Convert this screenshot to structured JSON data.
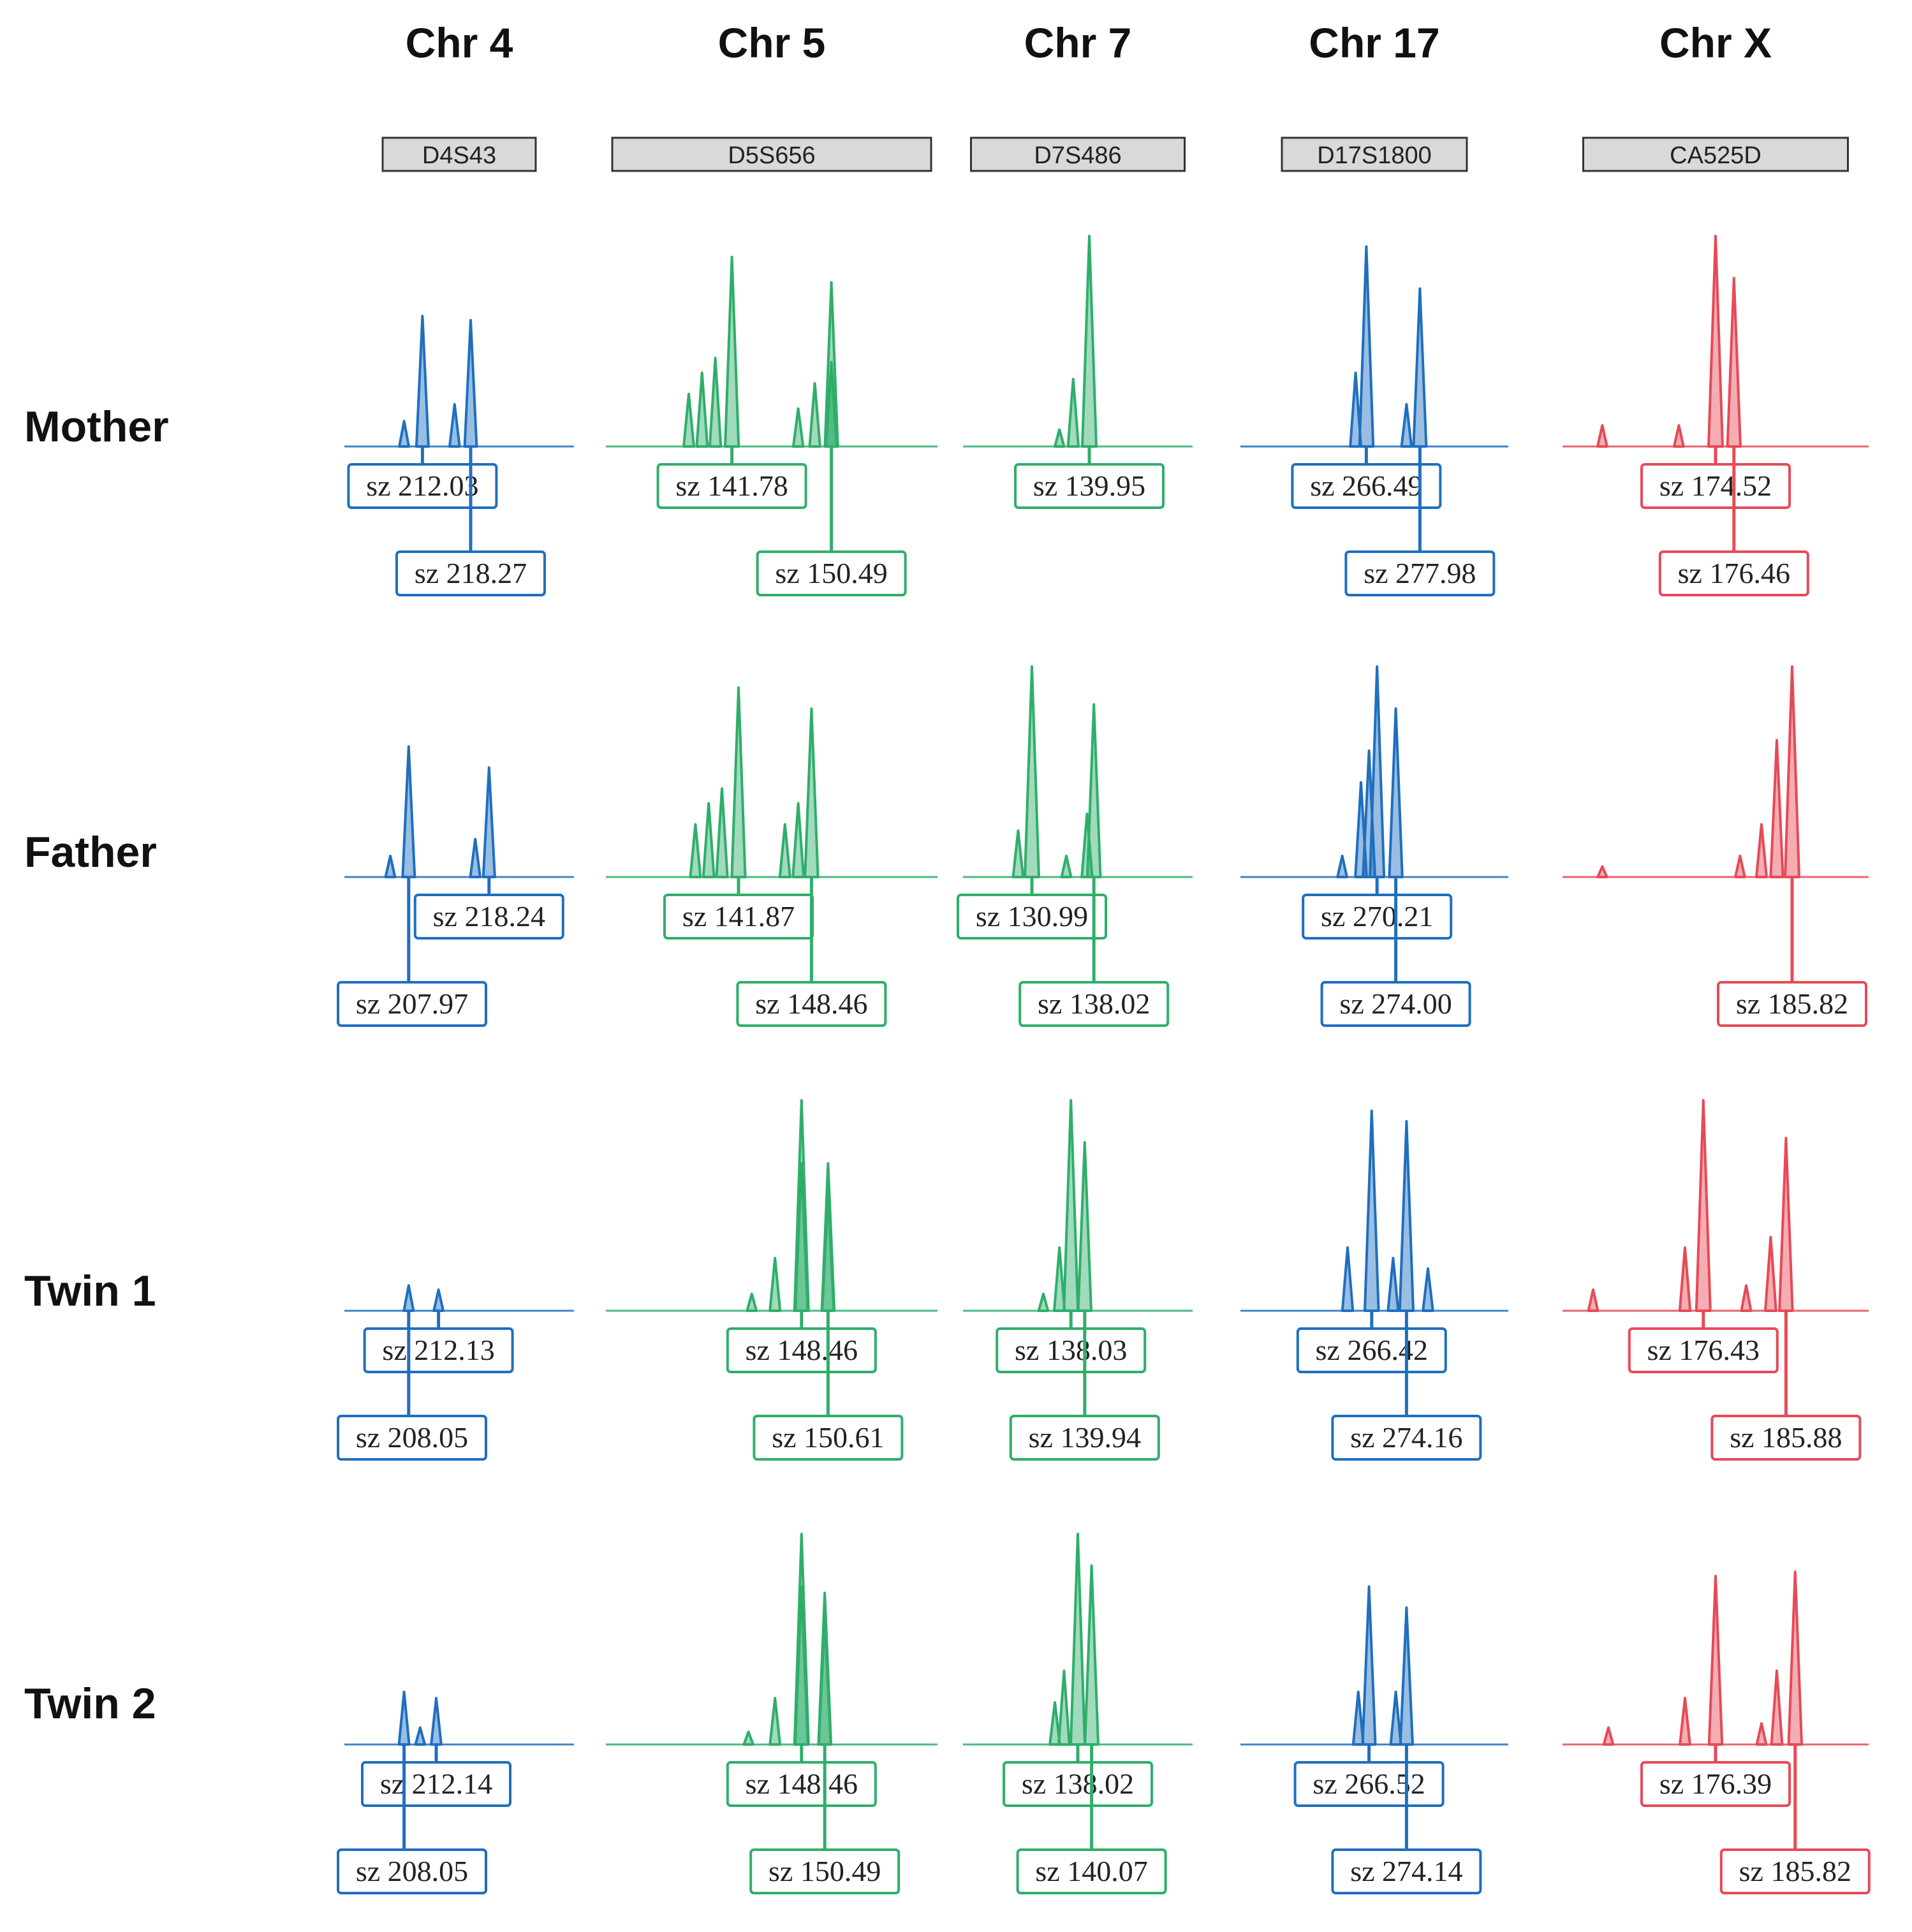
{
  "colors": {
    "blue": "#1f6fbf",
    "green": "#2fae6a",
    "red": "#e64a57",
    "baseline": "#555555",
    "markerFill": "#d9d9d9"
  },
  "columns": [
    {
      "title": "Chr 4",
      "marker": "D4S43",
      "color": "blue"
    },
    {
      "title": "Chr 5",
      "marker": "D5S656",
      "color": "green"
    },
    {
      "title": "Chr 7",
      "marker": "D7S486",
      "color": "green"
    },
    {
      "title": "Chr 17",
      "marker": "D17S1800",
      "color": "blue"
    },
    {
      "title": "Chr X",
      "marker": "CA525D",
      "color": "red"
    }
  ],
  "rows": [
    {
      "name": "Mother",
      "cells": [
        {
          "peaks": [
            {
              "pos": 0.26,
              "h": 0.12
            },
            {
              "pos": 0.34,
              "h": 0.62
            },
            {
              "pos": 0.48,
              "h": 0.2
            },
            {
              "pos": 0.55,
              "h": 0.6
            }
          ],
          "labels": [
            {
              "text": "sz 212.03",
              "level": 1,
              "anchor": 0.34
            },
            {
              "text": "sz 218.27",
              "level": 2,
              "anchor": 0.55
            }
          ]
        },
        {
          "peaks": [
            {
              "pos": 0.25,
              "h": 0.25
            },
            {
              "pos": 0.29,
              "h": 0.35
            },
            {
              "pos": 0.33,
              "h": 0.42
            },
            {
              "pos": 0.38,
              "h": 0.9
            },
            {
              "pos": 0.58,
              "h": 0.18
            },
            {
              "pos": 0.63,
              "h": 0.3
            },
            {
              "pos": 0.68,
              "h": 0.38
            },
            {
              "pos": 0.68,
              "h": 0.4
            },
            {
              "pos": 0.68,
              "h": 0.78
            }
          ],
          "labels": [
            {
              "text": "sz 141.78",
              "level": 1,
              "anchor": 0.38
            },
            {
              "text": "sz 150.49",
              "level": 2,
              "anchor": 0.68
            }
          ]
        },
        {
          "peaks": [
            {
              "pos": 0.42,
              "h": 0.08
            },
            {
              "pos": 0.48,
              "h": 0.32
            },
            {
              "pos": 0.55,
              "h": 1.0
            }
          ],
          "labels": [
            {
              "text": "sz 139.95",
              "level": 1,
              "anchor": 0.55
            }
          ]
        },
        {
          "peaks": [
            {
              "pos": 0.43,
              "h": 0.35
            },
            {
              "pos": 0.47,
              "h": 0.95
            },
            {
              "pos": 0.62,
              "h": 0.2
            },
            {
              "pos": 0.67,
              "h": 0.75
            }
          ],
          "labels": [
            {
              "text": "sz 266.49",
              "level": 1,
              "anchor": 0.47
            },
            {
              "text": "sz 277.98",
              "level": 2,
              "anchor": 0.67
            }
          ]
        },
        {
          "peaks": [
            {
              "pos": 0.13,
              "h": 0.1
            },
            {
              "pos": 0.38,
              "h": 0.1
            },
            {
              "pos": 0.5,
              "h": 1.0
            },
            {
              "pos": 0.56,
              "h": 0.8
            }
          ],
          "labels": [
            {
              "text": "sz 174.52",
              "level": 1,
              "anchor": 0.5
            },
            {
              "text": "sz 176.46",
              "level": 2,
              "anchor": 0.56
            }
          ]
        }
      ]
    },
    {
      "name": "Father",
      "cells": [
        {
          "peaks": [
            {
              "pos": 0.2,
              "h": 0.1
            },
            {
              "pos": 0.28,
              "h": 0.62
            },
            {
              "pos": 0.57,
              "h": 0.18
            },
            {
              "pos": 0.63,
              "h": 0.52
            }
          ],
          "labels": [
            {
              "text": "sz 218.24",
              "level": 1,
              "anchor": 0.63
            },
            {
              "text": "sz 207.97",
              "level": 2,
              "anchor": 0.28
            }
          ]
        },
        {
          "peaks": [
            {
              "pos": 0.27,
              "h": 0.25
            },
            {
              "pos": 0.31,
              "h": 0.35
            },
            {
              "pos": 0.35,
              "h": 0.42
            },
            {
              "pos": 0.4,
              "h": 0.9
            },
            {
              "pos": 0.54,
              "h": 0.25
            },
            {
              "pos": 0.58,
              "h": 0.35
            },
            {
              "pos": 0.62,
              "h": 0.8
            }
          ],
          "labels": [
            {
              "text": "sz 141.87",
              "level": 1,
              "anchor": 0.4
            },
            {
              "text": "sz 148.46",
              "level": 2,
              "anchor": 0.62
            }
          ]
        },
        {
          "peaks": [
            {
              "pos": 0.24,
              "h": 0.22
            },
            {
              "pos": 0.3,
              "h": 1.0
            },
            {
              "pos": 0.45,
              "h": 0.1
            },
            {
              "pos": 0.54,
              "h": 0.3
            },
            {
              "pos": 0.57,
              "h": 0.82
            }
          ],
          "labels": [
            {
              "text": "sz 130.99",
              "level": 1,
              "anchor": 0.3
            },
            {
              "text": "sz 138.02",
              "level": 2,
              "anchor": 0.57
            }
          ]
        },
        {
          "peaks": [
            {
              "pos": 0.38,
              "h": 0.1
            },
            {
              "pos": 0.45,
              "h": 0.45
            },
            {
              "pos": 0.48,
              "h": 0.6
            },
            {
              "pos": 0.51,
              "h": 1.0
            },
            {
              "pos": 0.58,
              "h": 0.8
            }
          ],
          "labels": [
            {
              "text": "sz 270.21",
              "level": 1,
              "anchor": 0.51
            },
            {
              "text": "sz 274.00",
              "level": 2,
              "anchor": 0.58
            }
          ]
        },
        {
          "peaks": [
            {
              "pos": 0.13,
              "h": 0.05
            },
            {
              "pos": 0.58,
              "h": 0.1
            },
            {
              "pos": 0.65,
              "h": 0.25
            },
            {
              "pos": 0.7,
              "h": 0.65
            },
            {
              "pos": 0.75,
              "h": 1.0
            }
          ],
          "labels": [
            {
              "text": "sz 185.82",
              "level": 2,
              "anchor": 0.75
            }
          ]
        }
      ]
    },
    {
      "name": "Twin 1",
      "cells": [
        {
          "peaks": [
            {
              "pos": 0.28,
              "h": 0.12
            },
            {
              "pos": 0.41,
              "h": 0.1
            }
          ],
          "labels": [
            {
              "text": "sz 212.13",
              "level": 1,
              "anchor": 0.41
            },
            {
              "text": "sz 208.05",
              "level": 2,
              "anchor": 0.28
            }
          ]
        },
        {
          "peaks": [
            {
              "pos": 0.44,
              "h": 0.08
            },
            {
              "pos": 0.51,
              "h": 0.25
            },
            {
              "pos": 0.59,
              "h": 0.7
            },
            {
              "pos": 0.59,
              "h": 1.0
            },
            {
              "pos": 0.67,
              "h": 0.55
            },
            {
              "pos": 0.67,
              "h": 0.7
            }
          ],
          "labels": [
            {
              "text": "sz 148.46",
              "level": 1,
              "anchor": 0.59
            },
            {
              "text": "sz 150.61",
              "level": 2,
              "anchor": 0.67
            }
          ]
        },
        {
          "peaks": [
            {
              "pos": 0.35,
              "h": 0.08
            },
            {
              "pos": 0.42,
              "h": 0.3
            },
            {
              "pos": 0.47,
              "h": 1.0
            },
            {
              "pos": 0.53,
              "h": 0.8
            }
          ],
          "labels": [
            {
              "text": "sz 138.03",
              "level": 1,
              "anchor": 0.47
            },
            {
              "text": "sz 139.94",
              "level": 2,
              "anchor": 0.53
            }
          ]
        },
        {
          "peaks": [
            {
              "pos": 0.4,
              "h": 0.3
            },
            {
              "pos": 0.49,
              "h": 0.95
            },
            {
              "pos": 0.57,
              "h": 0.25
            },
            {
              "pos": 0.62,
              "h": 0.9
            },
            {
              "pos": 0.7,
              "h": 0.2
            }
          ],
          "labels": [
            {
              "text": "sz 266.42",
              "level": 1,
              "anchor": 0.49
            },
            {
              "text": "sz 274.16",
              "level": 2,
              "anchor": 0.62
            }
          ]
        },
        {
          "peaks": [
            {
              "pos": 0.1,
              "h": 0.1
            },
            {
              "pos": 0.4,
              "h": 0.3
            },
            {
              "pos": 0.46,
              "h": 1.0
            },
            {
              "pos": 0.6,
              "h": 0.12
            },
            {
              "pos": 0.68,
              "h": 0.35
            },
            {
              "pos": 0.73,
              "h": 0.82
            }
          ],
          "labels": [
            {
              "text": "sz 176.43",
              "level": 1,
              "anchor": 0.46
            },
            {
              "text": "sz 185.88",
              "level": 2,
              "anchor": 0.73
            }
          ]
        }
      ]
    },
    {
      "name": "Twin 2",
      "cells": [
        {
          "peaks": [
            {
              "pos": 0.26,
              "h": 0.25
            },
            {
              "pos": 0.33,
              "h": 0.08
            },
            {
              "pos": 0.4,
              "h": 0.22
            }
          ],
          "labels": [
            {
              "text": "sz 212.14",
              "level": 1,
              "anchor": 0.4
            },
            {
              "text": "sz 208.05",
              "level": 2,
              "anchor": 0.26
            }
          ]
        },
        {
          "peaks": [
            {
              "pos": 0.43,
              "h": 0.06
            },
            {
              "pos": 0.51,
              "h": 0.22
            },
            {
              "pos": 0.59,
              "h": 0.75
            },
            {
              "pos": 0.59,
              "h": 1.0
            },
            {
              "pos": 0.66,
              "h": 0.6
            },
            {
              "pos": 0.66,
              "h": 0.72
            }
          ],
          "labels": [
            {
              "text": "sz 148.46",
              "level": 1,
              "anchor": 0.59
            },
            {
              "text": "sz 150.49",
              "level": 2,
              "anchor": 0.66
            }
          ]
        },
        {
          "peaks": [
            {
              "pos": 0.4,
              "h": 0.2
            },
            {
              "pos": 0.44,
              "h": 0.35
            },
            {
              "pos": 0.5,
              "h": 1.0
            },
            {
              "pos": 0.56,
              "h": 0.85
            }
          ],
          "labels": [
            {
              "text": "sz 138.02",
              "level": 1,
              "anchor": 0.5
            },
            {
              "text": "sz 140.07",
              "level": 2,
              "anchor": 0.56
            }
          ]
        },
        {
          "peaks": [
            {
              "pos": 0.44,
              "h": 0.25
            },
            {
              "pos": 0.48,
              "h": 0.75
            },
            {
              "pos": 0.58,
              "h": 0.25
            },
            {
              "pos": 0.62,
              "h": 0.65
            }
          ],
          "labels": [
            {
              "text": "sz 266.52",
              "level": 1,
              "anchor": 0.48
            },
            {
              "text": "sz 274.14",
              "level": 2,
              "anchor": 0.62
            }
          ]
        },
        {
          "peaks": [
            {
              "pos": 0.15,
              "h": 0.08
            },
            {
              "pos": 0.4,
              "h": 0.22
            },
            {
              "pos": 0.5,
              "h": 0.8
            },
            {
              "pos": 0.65,
              "h": 0.1
            },
            {
              "pos": 0.7,
              "h": 0.35
            },
            {
              "pos": 0.76,
              "h": 0.82
            }
          ],
          "labels": [
            {
              "text": "sz 176.39",
              "level": 1,
              "anchor": 0.5
            },
            {
              "text": "sz 185.82",
              "level": 2,
              "anchor": 0.76
            }
          ]
        }
      ]
    }
  ]
}
